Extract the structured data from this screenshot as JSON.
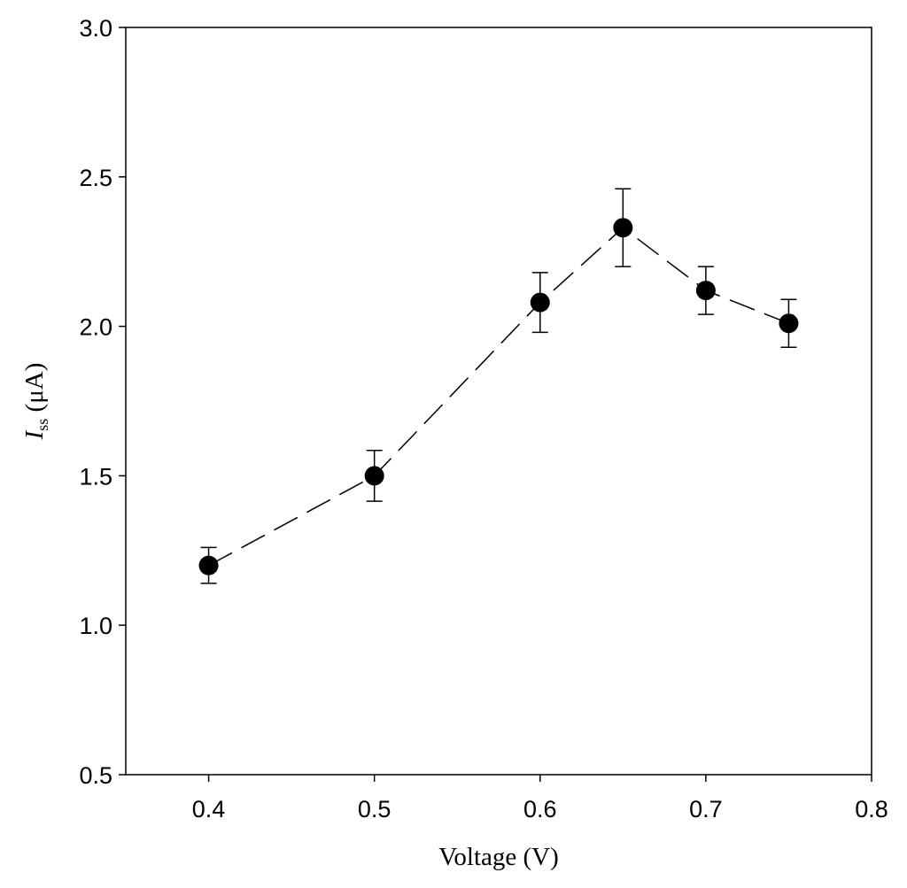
{
  "chart_data": {
    "type": "scatter",
    "title": "",
    "xlabel": "Voltage (V)",
    "ylabel": {
      "symbol": "I",
      "subscript": "ss",
      "unit": " (μA)"
    },
    "xlim": [
      0.35,
      0.8
    ],
    "ylim": [
      0.5,
      3.0
    ],
    "x_ticks": [
      0.4,
      0.5,
      0.6,
      0.7,
      0.8
    ],
    "x_tick_labels": [
      "0.4",
      "0.5",
      "0.6",
      "0.7",
      "0.8"
    ],
    "y_ticks": [
      0.5,
      1.0,
      1.5,
      2.0,
      2.5,
      3.0
    ],
    "y_tick_labels": [
      "0.5",
      "1.0",
      "1.5",
      "2.0",
      "2.5",
      "3.0"
    ],
    "grid": false,
    "legend": "none",
    "line_style": "dashed",
    "marker": "filled-circle",
    "series": [
      {
        "x": [
          0.4,
          0.5,
          0.6,
          0.65,
          0.7,
          0.75
        ],
        "y": [
          1.2,
          1.5,
          2.08,
          2.33,
          2.12,
          2.01
        ],
        "error": [
          0.06,
          0.085,
          0.1,
          0.13,
          0.08,
          0.08
        ]
      }
    ],
    "colors": {
      "marker": "#000000",
      "line": "#000000",
      "axis": "#000000"
    }
  }
}
